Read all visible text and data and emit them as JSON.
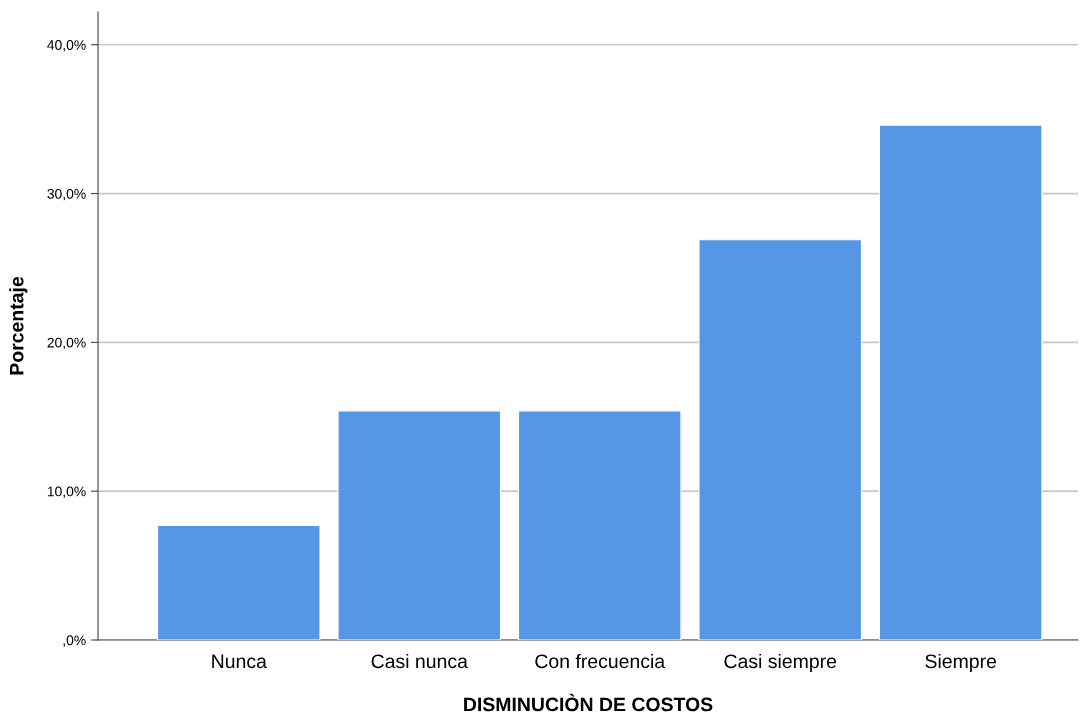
{
  "chart_data": {
    "type": "bar",
    "xlabel": "DISMINUCIÒN DE COSTOS",
    "ylabel": "Porcentaje",
    "categories": [
      "Nunca",
      "Casi nunca",
      "Con frecuencia",
      "Casi siempre",
      "Siempre"
    ],
    "values": [
      7.7,
      15.4,
      15.4,
      26.9,
      34.6
    ],
    "color": "#5596e5",
    "ylim": [
      0,
      42.2
    ],
    "yticks": [
      {
        "value": 0,
        "label": ",0%"
      },
      {
        "value": 10,
        "label": "10,0%"
      },
      {
        "value": 20,
        "label": "20,0%"
      },
      {
        "value": 30,
        "label": "30,0%"
      },
      {
        "value": 40,
        "label": "40,0%"
      }
    ],
    "grid": "y"
  }
}
